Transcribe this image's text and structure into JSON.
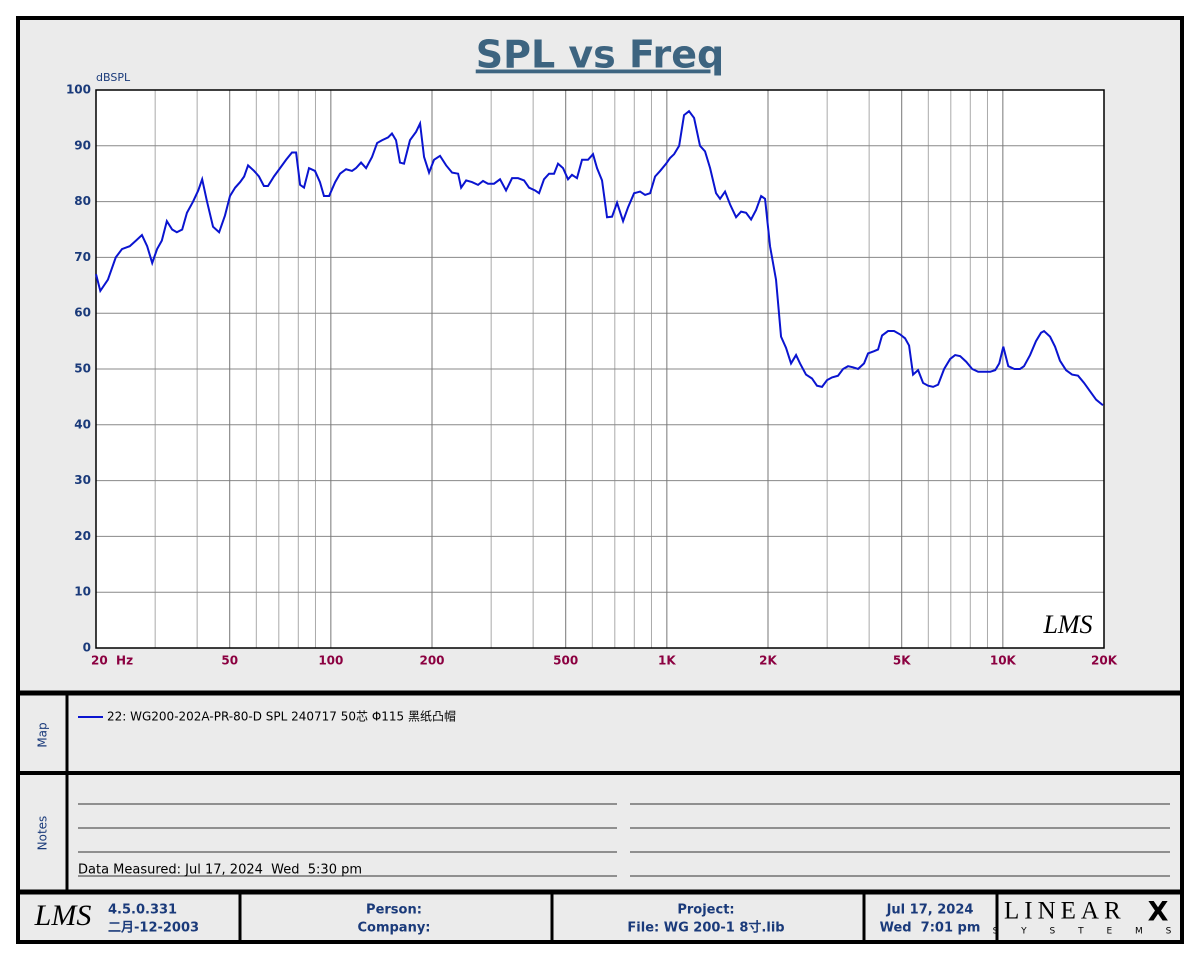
{
  "chart_data": {
    "type": "line",
    "title": "SPL vs Freq",
    "y_label": "dBSPL",
    "watermark": "LMS",
    "xscale": "log",
    "grid": true,
    "xlim": [
      20,
      20000
    ],
    "ylim": [
      0,
      100
    ],
    "xticks": [
      {
        "value": 20,
        "label": "20  Hz"
      },
      50,
      100,
      200,
      500,
      {
        "value": 1000,
        "label": "1K"
      },
      {
        "value": 2000,
        "label": "2K"
      },
      {
        "value": 5000,
        "label": "5K"
      },
      {
        "value": 10000,
        "label": "10K"
      },
      {
        "value": 20000,
        "label": "20K"
      }
    ],
    "xminorticks": [
      30,
      40,
      60,
      70,
      80,
      90,
      300,
      400,
      600,
      700,
      800,
      900,
      3000,
      4000,
      6000,
      7000,
      8000,
      9000
    ],
    "yticks": [
      0,
      10,
      20,
      30,
      40,
      50,
      60,
      70,
      80,
      90,
      100
    ],
    "x": [
      20,
      20.6,
      21.7,
      22.9,
      23.9,
      25.2,
      26.3,
      27.4,
      28.4,
      29.4,
      30.4,
      31.4,
      32.5,
      33.7,
      34.8,
      36.1,
      37.3,
      38.9,
      40.3,
      41.4,
      42.8,
      44.6,
      46.5,
      48.4,
      50.1,
      51.9,
      53.7,
      55.2,
      56.7,
      59.1,
      61.1,
      63.2,
      65.0,
      67.7,
      70.6,
      73.6,
      76.6,
      78.8,
      81.0,
      83.2,
      86.1,
      89.7,
      92.8,
      95.4,
      98.8,
      103,
      106.5,
      111,
      115.6,
      118.8,
      123,
      127.3,
      132.6,
      137.3,
      142,
      148,
      152,
      156.3,
      160.6,
      165.1,
      172,
      179.3,
      184.3,
      189.4,
      196,
      202.8,
      211.3,
      220.3,
      229.5,
      239.2,
      244.2,
      252.7,
      263,
      274.2,
      283.7,
      293.6,
      305.9,
      318.8,
      332.2,
      346.2,
      360.7,
      375.9,
      389,
      405.4,
      416.6,
      430.9,
      446,
      461.6,
      474.3,
      490.9,
      508,
      522,
      540.2,
      559.2,
      582.6,
      602.9,
      619.7,
      641.3,
      663.7,
      686.9,
      710.9,
      740.8,
      766.7,
      798.9,
      832.4,
      861.5,
      891.6,
      922.7,
      955,
      995,
      1022,
      1051,
      1088,
      1125,
      1164,
      1205,
      1255,
      1299,
      1345,
      1401,
      1440,
      1490,
      1542,
      1607,
      1663,
      1721,
      1781,
      1843,
      1908,
      1960,
      2028,
      2113,
      2187,
      2263,
      2342,
      2424,
      2491,
      2595,
      2704,
      2798,
      2896,
      2997,
      3102,
      3232,
      3345,
      3461,
      3582,
      3707,
      3863,
      3970,
      4137,
      4252,
      4370,
      4553,
      4745,
      4944,
      5116,
      5259,
      5405,
      5594,
      5789,
      5992,
      6201,
      6418,
      6687,
      6969,
      7212,
      7464,
      7778,
      8104,
      8445,
      8800,
      9170,
      9490,
      9757,
      10030,
      10380,
      10820,
      11250,
      11560,
      12050,
      12550,
      12990,
      13260,
      13820,
      14300,
      14790,
      15420,
      16070,
      16740,
      17450,
      18180,
      18950,
      19860
    ],
    "series": [
      {
        "name": "22: WG200-202A-PR-80-D SPL 240717 50芯 Φ115 黑纸凸帽",
        "color": "#0a14d0",
        "values": [
          67,
          64,
          66,
          70,
          71.5,
          72,
          73,
          74,
          72,
          69,
          71.5,
          73,
          76.5,
          75,
          74.5,
          75,
          78,
          80,
          82,
          84,
          80,
          75.5,
          74.5,
          77.5,
          81,
          82.5,
          83.5,
          84.5,
          86.5,
          85.5,
          84.5,
          82.8,
          82.8,
          84.5,
          86,
          87.5,
          88.8,
          88.8,
          83,
          82.5,
          86,
          85.5,
          83.5,
          81,
          81,
          83.5,
          85,
          85.8,
          85.5,
          86,
          87,
          86,
          88,
          90.5,
          91,
          91.5,
          92.2,
          91,
          87,
          86.8,
          91,
          92.5,
          94,
          88,
          85.2,
          87.5,
          88.2,
          86.5,
          85.2,
          85,
          82.5,
          83.8,
          83.5,
          83,
          83.7,
          83.2,
          83.2,
          84,
          82,
          84.2,
          84.2,
          83.8,
          82.5,
          82,
          81.5,
          84,
          85,
          85,
          86.8,
          86,
          84,
          84.8,
          84.2,
          87.5,
          87.5,
          88.5,
          86,
          83.8,
          77.2,
          77.3,
          79.8,
          76.5,
          79,
          81.5,
          81.8,
          81.2,
          81.5,
          84.5,
          85.5,
          86.8,
          87.8,
          88.5,
          90,
          95.5,
          96.2,
          95,
          90,
          89,
          86,
          81.5,
          80.5,
          81.8,
          79.5,
          77.2,
          78.2,
          78,
          76.8,
          78.5,
          81,
          80.5,
          72,
          66,
          55.8,
          53.8,
          51,
          52.5,
          51,
          49,
          48.3,
          47,
          46.8,
          48,
          48.5,
          48.8,
          50,
          50.5,
          50.3,
          50,
          51,
          52.8,
          53.2,
          53.5,
          56,
          56.8,
          56.8,
          56.2,
          55.5,
          54.2,
          49,
          49.8,
          47.5,
          47,
          46.8,
          47.2,
          50,
          51.8,
          52.5,
          52.3,
          51.3,
          50,
          49.5,
          49.5,
          49.5,
          49.8,
          51,
          54,
          50.5,
          50,
          50,
          50.5,
          52.5,
          55,
          56.5,
          56.8,
          55.8,
          54,
          51.5,
          49.8,
          49,
          48.8,
          47.5,
          46,
          44.5,
          43.5
        ]
      }
    ]
  },
  "map": {
    "label": "Map"
  },
  "notes": {
    "label": "Notes",
    "text": "Data Measured: Jul 17, 2024  Wed  5:30 pm"
  },
  "footer": {
    "logo": "LMS",
    "version": "4.5.0.331",
    "build_date": "二月-12-2003",
    "person": "Person:",
    "company": "Company:",
    "project": "Project:",
    "file": "File: WG 200-1 8寸.lib",
    "date": "Jul 17, 2024",
    "time": "Wed  7:01 pm",
    "brand": "LINEAR",
    "brand_x": "X",
    "brand_sub": "S Y S T E M S"
  }
}
